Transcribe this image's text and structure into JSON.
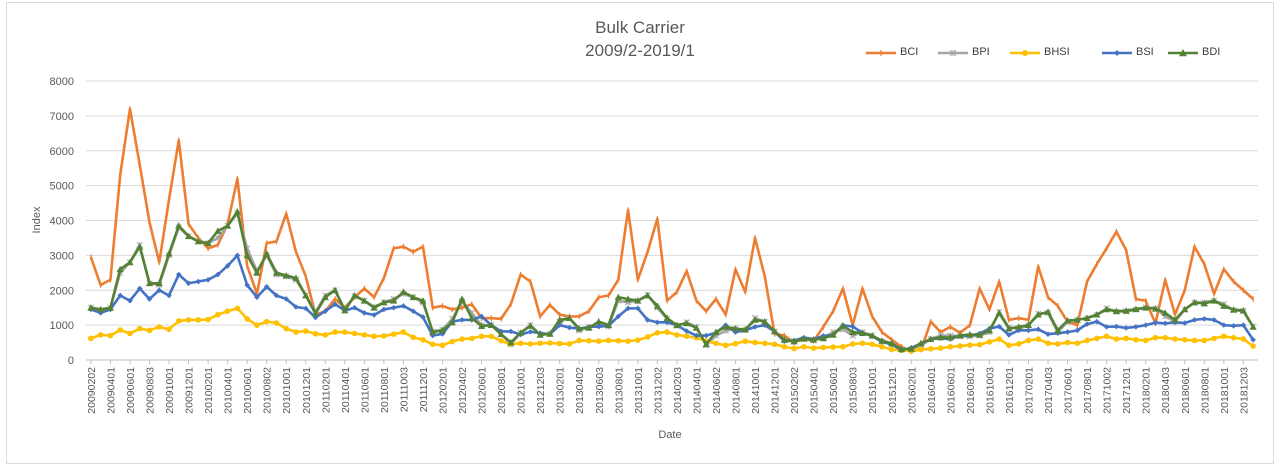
{
  "chart_data": {
    "type": "line",
    "title": "Bulk Carrier",
    "subtitle": "2009/2-2019/1",
    "xlabel": "Date",
    "ylabel": "Index",
    "ylim": [
      0,
      8000
    ],
    "yticks": [
      0,
      1000,
      2000,
      3000,
      4000,
      5000,
      6000,
      7000,
      8000
    ],
    "grid": "horizontal",
    "legend": "top-right",
    "x": [
      "200902",
      "200903",
      "200904",
      "200905",
      "200906",
      "200907",
      "200908",
      "200909",
      "200910",
      "200911",
      "200912",
      "201001",
      "201002",
      "201003",
      "201004",
      "201005",
      "201006",
      "201007",
      "201008",
      "201009",
      "201010",
      "201011",
      "201012",
      "201101",
      "201102",
      "201103",
      "201104",
      "201105",
      "201106",
      "201107",
      "201108",
      "201109",
      "201110",
      "201111",
      "201112",
      "201201",
      "201202",
      "201203",
      "201204",
      "201205",
      "201206",
      "201207",
      "201208",
      "201209",
      "201210",
      "201211",
      "201212",
      "201301",
      "201302",
      "201303",
      "201304",
      "201305",
      "201306",
      "201307",
      "201308",
      "201309",
      "201310",
      "201311",
      "201312",
      "201401",
      "201402",
      "201403",
      "201404",
      "201405",
      "201406",
      "201407",
      "201408",
      "201409",
      "201410",
      "201411",
      "201412",
      "201501",
      "201502",
      "201503",
      "201504",
      "201505",
      "201506",
      "201507",
      "201508",
      "201509",
      "201510",
      "201511",
      "201512",
      "201601",
      "201602",
      "201603",
      "201604",
      "201605",
      "201606",
      "201607",
      "201608",
      "201609",
      "201610",
      "201611",
      "201612",
      "201701",
      "201702",
      "201703",
      "201704",
      "201705",
      "201706",
      "201707",
      "201708",
      "201709",
      "201710",
      "201711",
      "201712",
      "201801",
      "201802",
      "201803",
      "201804",
      "201805",
      "201806",
      "201807",
      "201808",
      "201809",
      "201810",
      "201811",
      "201812",
      "201901"
    ],
    "x_tick_labels": [
      "20090202",
      "20090401",
      "20090601",
      "20090803",
      "20091001",
      "20091201",
      "20100201",
      "20100401",
      "20100601",
      "20100802",
      "20101001",
      "20101201",
      "20110201",
      "20110401",
      "20110601",
      "20110801",
      "20111003",
      "20111201",
      "20120201",
      "20120402",
      "20120601",
      "20120801",
      "20121001",
      "20121203",
      "20130201",
      "20130402",
      "20130603",
      "20130801",
      "20131001",
      "20131202",
      "20140203",
      "20140401",
      "20140602",
      "20140801",
      "20141001",
      "20141201",
      "20150202",
      "20150401",
      "20150601",
      "20150803",
      "20151001",
      "20151201",
      "20160201",
      "20160401",
      "20160601",
      "20160801",
      "20161003",
      "20161201",
      "20170201",
      "20170403",
      "20170601",
      "20170801",
      "20171002",
      "20171201",
      "20180201",
      "20180403",
      "20180601",
      "20180801",
      "20181001",
      "20181203"
    ],
    "series": [
      {
        "name": "BCI",
        "color": "#ed7d31",
        "marker": "dash",
        "values": [
          2950,
          2150,
          2300,
          5300,
          7200,
          5600,
          3950,
          2800,
          4600,
          6300,
          3900,
          3500,
          3200,
          3300,
          3900,
          5200,
          2700,
          1900,
          3350,
          3400,
          4200,
          3100,
          2400,
          1300,
          1400,
          1750,
          1500,
          1800,
          2050,
          1800,
          2350,
          3200,
          3250,
          3100,
          3250,
          1500,
          1550,
          1450,
          1500,
          1600,
          1200,
          1200,
          1180,
          1600,
          2450,
          2250,
          1250,
          1580,
          1300,
          1250,
          1250,
          1400,
          1800,
          1850,
          2300,
          4300,
          2300,
          3100,
          4050,
          1700,
          1950,
          2550,
          1700,
          1400,
          1750,
          1300,
          2600,
          1950,
          3500,
          2400,
          750,
          700,
          500,
          600,
          550,
          950,
          1400,
          2050,
          1000,
          2050,
          1250,
          800,
          580,
          380,
          250,
          300,
          1100,
          800,
          950,
          780,
          1000,
          2050,
          1450,
          2250,
          1150,
          1200,
          1150,
          2680,
          1800,
          1550,
          1100,
          1000,
          2250,
          2750,
          3200,
          3680,
          3150,
          1750,
          1700,
          1050,
          2300,
          1300,
          2000,
          3250,
          2750,
          1900,
          2600,
          2250,
          2000,
          1750
        ]
      },
      {
        "name": "BPI",
        "color": "#a5a5a5",
        "marker": "star",
        "values": [
          1500,
          1420,
          1500,
          2500,
          2800,
          3300,
          2200,
          2150,
          3000,
          3800,
          3550,
          3400,
          3350,
          3500,
          3850,
          4200,
          3200,
          2550,
          3000,
          2450,
          2400,
          2300,
          1850,
          1380,
          1850,
          2000,
          1450,
          1830,
          1700,
          1520,
          1650,
          1750,
          1900,
          1800,
          1650,
          820,
          870,
          1180,
          1680,
          1350,
          1000,
          1000,
          740,
          450,
          780,
          1000,
          730,
          750,
          1100,
          1200,
          850,
          950,
          1000,
          960,
          1700,
          1650,
          1700,
          1870,
          1500,
          1180,
          980,
          1080,
          950,
          420,
          700,
          840,
          900,
          860,
          1200,
          1100,
          820,
          560,
          530,
          600,
          570,
          640,
          800,
          880,
          700,
          800,
          700,
          530,
          450,
          300,
          300,
          420,
          600,
          700,
          700,
          680,
          680,
          700,
          800,
          1380,
          930,
          900,
          1000,
          1330,
          1350,
          800,
          1100,
          1150,
          1200,
          1300,
          1480,
          1380,
          1400,
          1440,
          1500,
          1480,
          1250,
          1100,
          1450,
          1650,
          1650,
          1700,
          1600,
          1430,
          1400,
          950
        ]
      },
      {
        "name": "BHSI",
        "color": "#ffc000",
        "marker": "circle",
        "values": [
          620,
          720,
          700,
          860,
          760,
          900,
          850,
          950,
          880,
          1120,
          1150,
          1150,
          1160,
          1300,
          1400,
          1480,
          1180,
          1000,
          1100,
          1060,
          900,
          800,
          830,
          750,
          720,
          800,
          800,
          760,
          720,
          680,
          690,
          740,
          800,
          650,
          580,
          450,
          420,
          530,
          600,
          620,
          680,
          680,
          550,
          450,
          480,
          460,
          480,
          490,
          470,
          460,
          560,
          550,
          540,
          560,
          550,
          540,
          570,
          660,
          780,
          800,
          720,
          680,
          640,
          540,
          480,
          420,
          470,
          540,
          500,
          480,
          450,
          380,
          330,
          380,
          340,
          360,
          370,
          380,
          460,
          480,
          450,
          380,
          300,
          280,
          260,
          300,
          320,
          340,
          380,
          400,
          430,
          440,
          520,
          600,
          420,
          460,
          560,
          600,
          480,
          460,
          500,
          480,
          560,
          620,
          680,
          600,
          620,
          580,
          560,
          640,
          640,
          600,
          580,
          560,
          560,
          620,
          680,
          640,
          600,
          400
        ]
      },
      {
        "name": "BSI",
        "color": "#4472c4",
        "marker": "diamond",
        "values": [
          1450,
          1350,
          1450,
          1850,
          1700,
          2050,
          1750,
          2000,
          1850,
          2450,
          2200,
          2250,
          2300,
          2450,
          2700,
          3000,
          2150,
          1800,
          2100,
          1850,
          1750,
          1520,
          1480,
          1220,
          1400,
          1600,
          1420,
          1500,
          1350,
          1290,
          1450,
          1500,
          1550,
          1400,
          1230,
          700,
          750,
          1100,
          1150,
          1150,
          1250,
          1000,
          820,
          820,
          730,
          810,
          770,
          740,
          1000,
          930,
          900,
          950,
          960,
          980,
          1250,
          1480,
          1480,
          1150,
          1080,
          1080,
          1000,
          830,
          700,
          700,
          780,
          1000,
          800,
          850,
          950,
          1000,
          820,
          540,
          560,
          640,
          600,
          690,
          720,
          1000,
          960,
          780,
          680,
          520,
          450,
          280,
          350,
          470,
          600,
          620,
          600,
          700,
          700,
          760,
          900,
          960,
          720,
          850,
          850,
          880,
          740,
          770,
          800,
          850,
          1030,
          1100,
          950,
          960,
          920,
          950,
          1000,
          1070,
          1050,
          1080,
          1060,
          1150,
          1180,
          1150,
          1000,
          980,
          1000,
          580
        ]
      },
      {
        "name": "BDI",
        "color": "#548235",
        "marker": "triangle",
        "values": [
          1500,
          1450,
          1500,
          2600,
          2800,
          3250,
          2200,
          2200,
          3050,
          3850,
          3550,
          3400,
          3350,
          3700,
          3850,
          4250,
          3000,
          2500,
          3050,
          2500,
          2420,
          2350,
          1850,
          1330,
          1800,
          2000,
          1420,
          1850,
          1700,
          1500,
          1650,
          1700,
          1950,
          1800,
          1700,
          800,
          850,
          1080,
          1750,
          1200,
          970,
          1000,
          740,
          500,
          780,
          980,
          720,
          750,
          1150,
          1200,
          900,
          920,
          1100,
          1000,
          1800,
          1750,
          1700,
          1850,
          1550,
          1200,
          1000,
          1050,
          920,
          450,
          800,
          950,
          900,
          870,
          1150,
          1100,
          820,
          580,
          530,
          610,
          580,
          620,
          720,
          980,
          800,
          770,
          700,
          550,
          480,
          310,
          320,
          480,
          600,
          650,
          640,
          700,
          730,
          720,
          850,
          1350,
          900,
          950,
          1000,
          1300,
          1380,
          850,
          1130,
          1150,
          1200,
          1300,
          1450,
          1400,
          1410,
          1460,
          1500,
          1470,
          1350,
          1150,
          1450,
          1650,
          1620,
          1700,
          1550,
          1440,
          1420,
          950
        ]
      }
    ]
  }
}
